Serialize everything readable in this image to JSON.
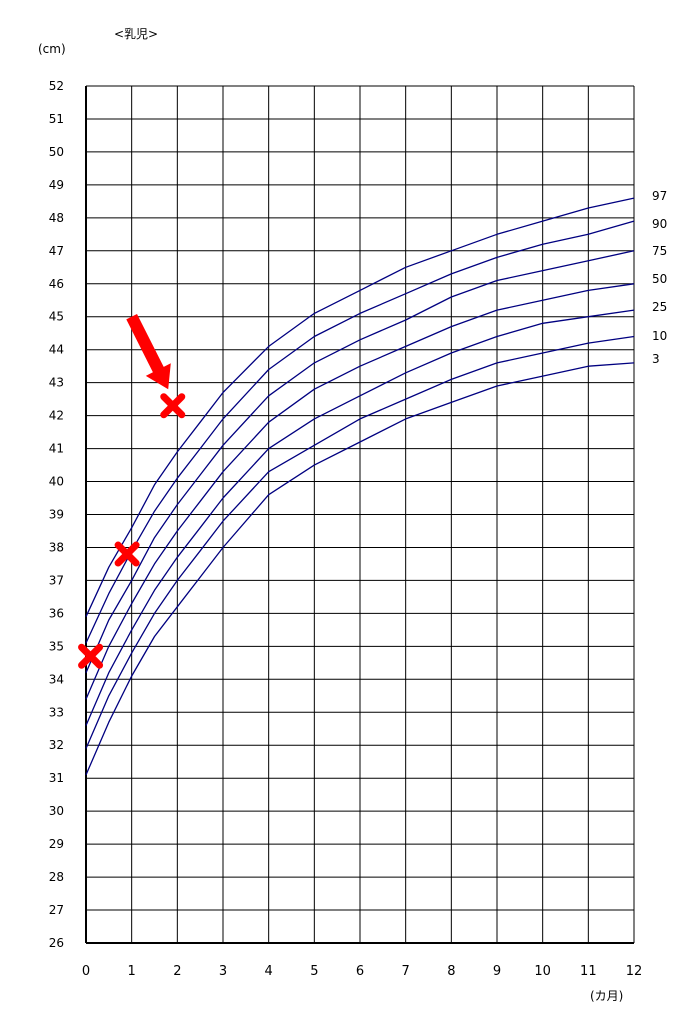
{
  "chart_data": {
    "type": "line",
    "title": "<乳児>",
    "ylabel": "(cm)",
    "xlabel": "(カ月)",
    "xlim": [
      0,
      12
    ],
    "ylim": [
      26,
      52
    ],
    "grid": true,
    "x_ticks": [
      0,
      1,
      2,
      3,
      4,
      5,
      6,
      7,
      8,
      9,
      10,
      11,
      12
    ],
    "y_ticks": [
      26,
      27,
      28,
      29,
      30,
      31,
      32,
      33,
      34,
      35,
      36,
      37,
      38,
      39,
      40,
      41,
      42,
      43,
      44,
      45,
      46,
      47,
      48,
      49,
      50,
      51,
      52
    ],
    "x": [
      0,
      0.5,
      1,
      1.5,
      2,
      2.5,
      3,
      4,
      5,
      6,
      7,
      8,
      9,
      10,
      11,
      12
    ],
    "line_color": "#000080",
    "series": [
      {
        "name": "3",
        "values": [
          31.1,
          32.7,
          34.1,
          35.3,
          36.2,
          37.1,
          38.0,
          39.6,
          40.5,
          41.2,
          41.9,
          42.4,
          42.9,
          43.2,
          43.5,
          43.6
        ]
      },
      {
        "name": "10",
        "values": [
          31.9,
          33.5,
          34.8,
          36.0,
          37.0,
          37.9,
          38.8,
          40.3,
          41.1,
          41.9,
          42.5,
          43.1,
          43.6,
          43.9,
          44.2,
          44.4
        ]
      },
      {
        "name": "25",
        "values": [
          32.6,
          34.2,
          35.5,
          36.7,
          37.7,
          38.6,
          39.5,
          41.0,
          41.9,
          42.6,
          43.3,
          43.9,
          44.4,
          44.8,
          45.0,
          45.2
        ]
      },
      {
        "name": "50",
        "values": [
          33.4,
          35.0,
          36.3,
          37.5,
          38.5,
          39.4,
          40.3,
          41.8,
          42.8,
          43.5,
          44.1,
          44.7,
          45.2,
          45.5,
          45.8,
          46.0
        ]
      },
      {
        "name": "75",
        "values": [
          34.2,
          35.8,
          37.0,
          38.3,
          39.3,
          40.2,
          41.1,
          42.6,
          43.6,
          44.3,
          44.9,
          45.6,
          46.1,
          46.4,
          46.7,
          47.0
        ]
      },
      {
        "name": "90",
        "values": [
          35.1,
          36.6,
          37.9,
          39.1,
          40.1,
          41.0,
          41.9,
          43.4,
          44.4,
          45.1,
          45.7,
          46.3,
          46.8,
          47.2,
          47.5,
          47.9
        ]
      },
      {
        "name": "97",
        "values": [
          35.9,
          37.4,
          38.6,
          39.9,
          40.9,
          41.8,
          42.7,
          44.1,
          45.1,
          45.8,
          46.5,
          47.0,
          47.5,
          47.9,
          48.3,
          48.6
        ]
      }
    ],
    "markers": [
      {
        "x": 0.1,
        "y": 34.7,
        "shape": "x",
        "color": "#ff0000"
      },
      {
        "x": 0.9,
        "y": 37.8,
        "shape": "x",
        "color": "#ff0000"
      },
      {
        "x": 1.9,
        "y": 42.3,
        "shape": "x",
        "color": "#ff0000"
      }
    ],
    "annotations": [
      {
        "type": "arrow",
        "color": "#ff0000",
        "from": [
          1.0,
          45.0
        ],
        "to": [
          1.8,
          42.8
        ]
      }
    ]
  }
}
